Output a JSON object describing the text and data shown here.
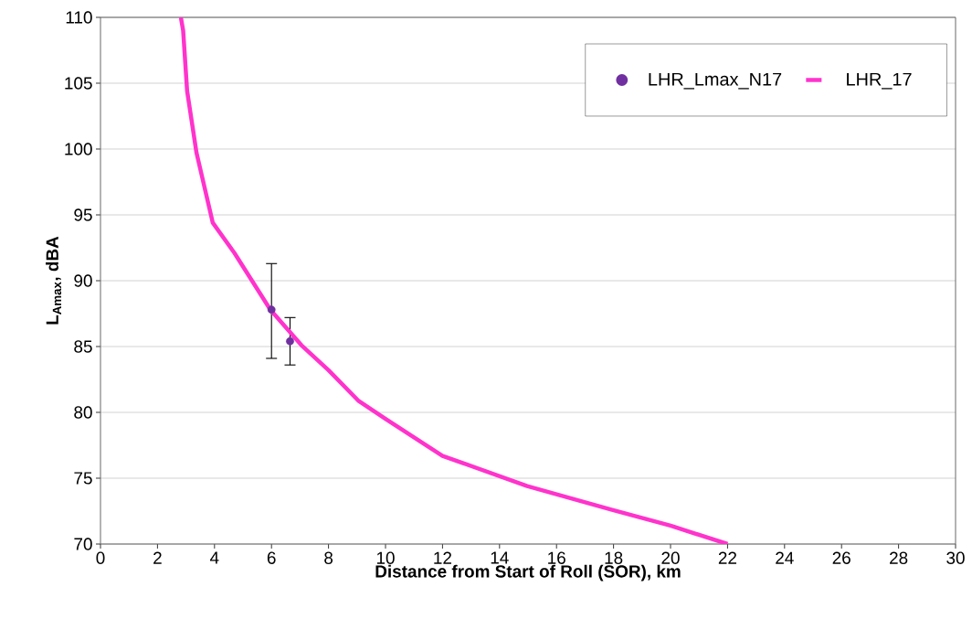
{
  "chart_data": {
    "type": "line",
    "xlabel": "Distance from Start of Roll (SOR), km",
    "ylabel": "L$_{Amax}$, dBA",
    "xlim": [
      0,
      30
    ],
    "xticks": [
      0,
      2,
      4,
      6,
      8,
      10,
      12,
      14,
      16,
      18,
      20,
      22,
      24,
      26,
      28,
      30
    ],
    "ylim": [
      70,
      110
    ],
    "yticks": [
      70,
      75,
      80,
      85,
      90,
      95,
      100,
      105,
      110
    ],
    "grid": "y",
    "legend": "top right",
    "series": [
      {
        "name": "LHR_Lmax_N17",
        "type": "scatter",
        "marker": "circle",
        "color": "#7030a0",
        "x": [
          6.0,
          6.65
        ],
        "values": [
          87.8,
          85.4
        ],
        "errors": [
          [
            84.1,
            91.3
          ],
          [
            83.6,
            87.2
          ]
        ]
      },
      {
        "name": "LHR_17",
        "marker": "none",
        "color": "#ff33cc",
        "x": [
          2.82,
          2.9,
          3.04,
          3.37,
          3.94,
          4.7,
          5.96,
          7.05,
          8.0,
          9.04,
          10.0,
          12.0,
          14.97,
          17.95,
          20.0,
          22.0
        ],
        "values": [
          110,
          109,
          104.4,
          99.7,
          94.4,
          92.1,
          87.8,
          85.1,
          83.2,
          80.9,
          79.5,
          76.7,
          74.4,
          72.6,
          71.4,
          70
        ]
      }
    ]
  }
}
